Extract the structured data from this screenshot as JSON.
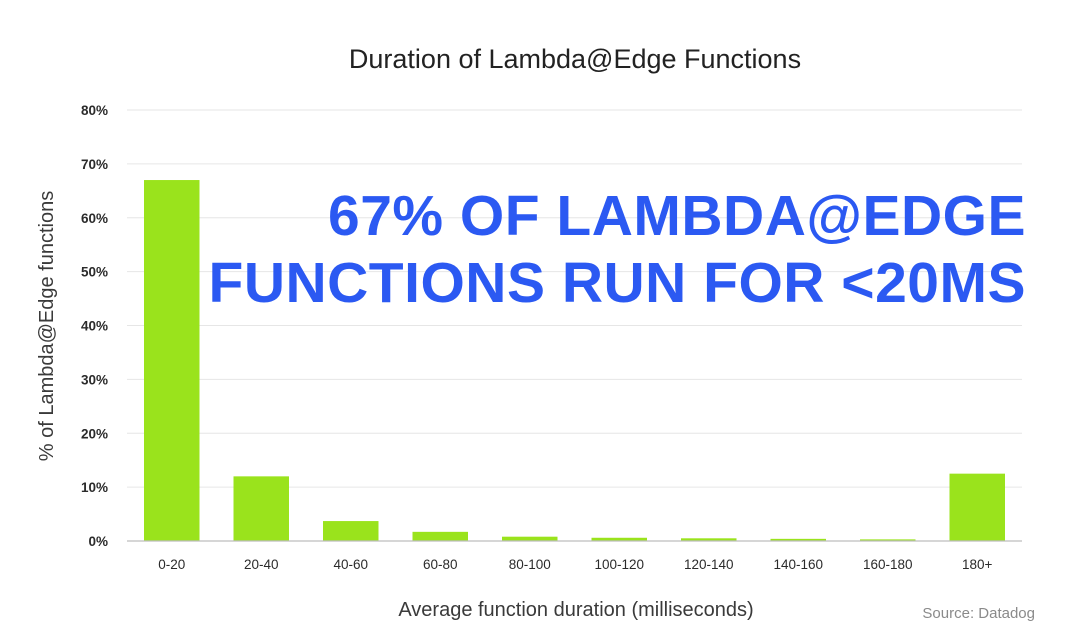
{
  "chart_data": {
    "type": "bar",
    "title": "Duration of Lambda@Edge Functions",
    "xlabel": "Average function duration (milliseconds)",
    "ylabel": "% of Lambda@Edge functions",
    "categories": [
      "0-20",
      "20-40",
      "40-60",
      "60-80",
      "80-100",
      "100-120",
      "120-140",
      "140-160",
      "160-180",
      "180+"
    ],
    "values": [
      67,
      12,
      3.7,
      1.7,
      0.8,
      0.6,
      0.5,
      0.4,
      0.3,
      12.5
    ],
    "ylim": [
      0,
      80
    ],
    "yticks": [
      0,
      10,
      20,
      30,
      40,
      50,
      60,
      70,
      80
    ],
    "ytick_labels": [
      "0%",
      "10%",
      "20%",
      "30%",
      "40%",
      "50%",
      "60%",
      "70%",
      "80%"
    ],
    "grid": true,
    "legend": "none",
    "annotation": {
      "lines": [
        "67% OF LAMBDA@EDGE",
        "FUNCTIONS RUN FOR <20MS"
      ]
    },
    "source": "Source: Datadog",
    "colors": {
      "bar": "#9ae31c",
      "annotation": "#2b59f2"
    }
  }
}
